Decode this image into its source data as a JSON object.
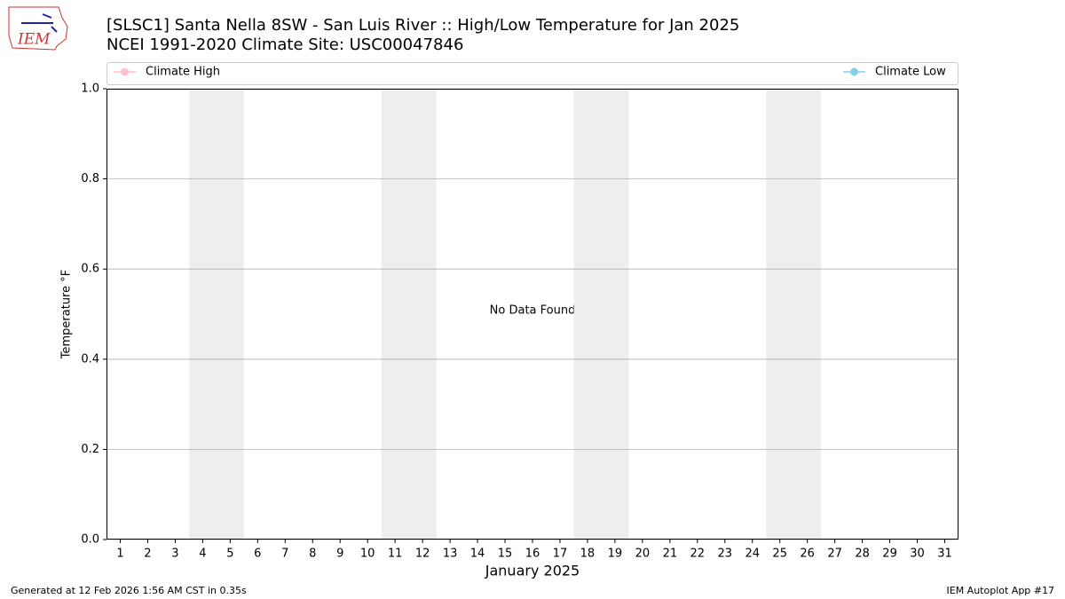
{
  "logo": "IEM",
  "chart_data": {
    "type": "line",
    "title": "[SLSC1] Santa Nella 8SW - San Luis River :: High/Low Temperature for Jan 2025",
    "subtitle": "NCEI 1991-2020 Climate Site: USC00047846",
    "x_label": "January 2025",
    "y_label": "Temperature °F",
    "annotation": "No Data Found",
    "x": [],
    "series": [
      {
        "name": "Climate High",
        "color": "#ffc0cb",
        "values": []
      },
      {
        "name": "Climate Low",
        "color": "#87ceeb",
        "values": []
      }
    ],
    "xlim": [
      0.5,
      31.5
    ],
    "xticks": [
      1,
      2,
      3,
      4,
      5,
      6,
      7,
      8,
      9,
      10,
      11,
      12,
      13,
      14,
      15,
      16,
      17,
      18,
      19,
      20,
      21,
      22,
      23,
      24,
      25,
      26,
      27,
      28,
      29,
      30,
      31
    ],
    "ylim": [
      0,
      1
    ],
    "yticks": [
      {
        "value": 0,
        "label": "0.0"
      },
      0.2,
      0.4,
      0.6,
      0.8,
      {
        "value": 1,
        "label": "1.0"
      }
    ],
    "shaded_ranges": [
      [
        3.5,
        5.5
      ],
      [
        10.5,
        12.5
      ],
      [
        17.5,
        19.5
      ],
      [
        24.5,
        26.5
      ]
    ],
    "shade_color": "#eeeeee",
    "grid": true
  },
  "footer": {
    "left": "Generated at 12 Feb 2026 1:56 AM CST in 0.35s",
    "right": "IEM Autoplot App #17"
  }
}
